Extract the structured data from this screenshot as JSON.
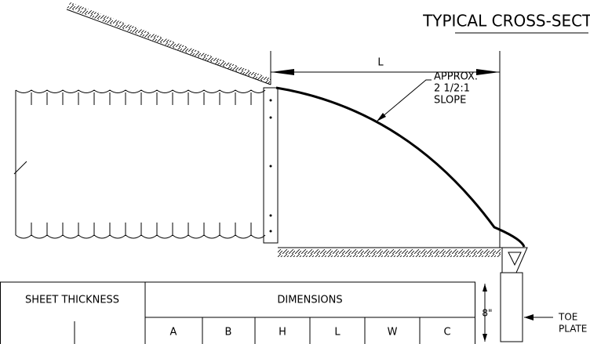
{
  "title": "TYPICAL CROSS-SECTION",
  "dimension_label": "L",
  "slope_note": [
    "APPROX.",
    "2 1/2:1",
    "SLOPE"
  ],
  "toe_height": "8\"",
  "toe_note": [
    "TOE",
    "PLATE"
  ],
  "table": {
    "group_headers": [
      "SHEET THICKNESS",
      "DIMENSIONS"
    ],
    "columns": [
      "A",
      "B",
      "H",
      "L",
      "W",
      "C"
    ]
  }
}
